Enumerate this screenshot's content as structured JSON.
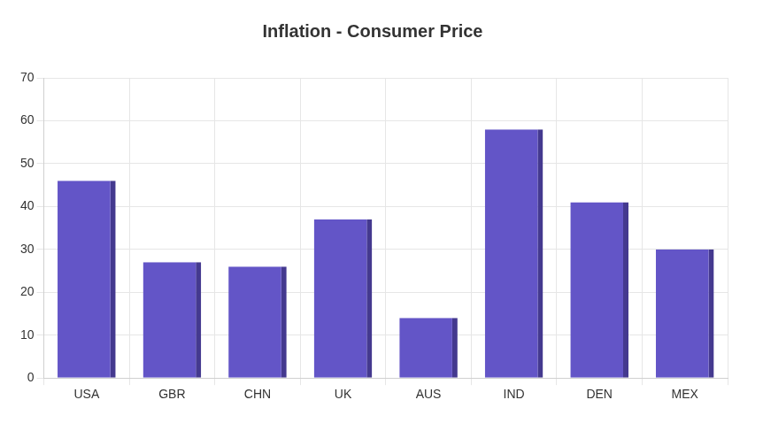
{
  "chart_data": {
    "type": "bar",
    "title": "Inflation - Consumer Price",
    "categories": [
      "USA",
      "GBR",
      "CHN",
      "UK",
      "AUS",
      "IND",
      "DEN",
      "MEX"
    ],
    "values": [
      46,
      27,
      26,
      37,
      14,
      58,
      41,
      30
    ],
    "color": "#6355c7",
    "ylim": [
      0,
      70
    ],
    "yticks": [
      0,
      10,
      20,
      30,
      40,
      50,
      60,
      70
    ],
    "grid": true
  }
}
